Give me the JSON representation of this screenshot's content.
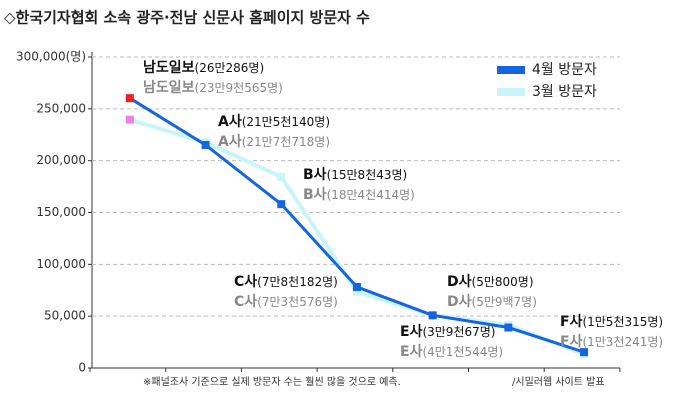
{
  "chart_data": {
    "type": "line",
    "title": "◇한국기자협회 소속 광주·전남 신문사 홈페이지 방문자 수",
    "categories": [
      "남도일보",
      "A사",
      "B사",
      "C사",
      "D사",
      "E사",
      "F사"
    ],
    "series": [
      {
        "name": "4월 방문자",
        "color": "#1565e0",
        "first_marker_color": "#e82020",
        "values": [
          260286,
          215140,
          158043,
          78182,
          50800,
          39067,
          15315
        ],
        "value_labels": [
          "(26만286명)",
          "(21만5천140명)",
          "(15만8천43명)",
          "(7만8천182명)",
          "(5만800명)",
          "(3만9천67명)",
          "(1만5천315명)"
        ]
      },
      {
        "name": "3월 방문자",
        "color": "#c8f5f8",
        "first_marker_color": "#f080e8",
        "values": [
          239565,
          217718,
          184414,
          73576,
          50907,
          41544,
          13241
        ],
        "value_labels": [
          "(23만9천565명)",
          "(21만7천718명)",
          "(18만4천414명)",
          "(7만3천576명)",
          "(5만9백7명)",
          "(4만1천544명)",
          "(1만3천241명)"
        ]
      }
    ],
    "ylim": [
      0,
      300000
    ],
    "yticks": [
      0,
      {
        "value": 50000,
        "label": "50,000"
      },
      {
        "value": 100000,
        "label": "100,000"
      },
      {
        "value": 150000,
        "label": "150,000"
      },
      {
        "value": 200000,
        "label": "200,000"
      },
      {
        "value": 250000,
        "label": "250,000"
      },
      {
        "value": 300000,
        "label": "300,000(명)"
      }
    ],
    "grid": true,
    "legend": "top-right",
    "notes": [
      "※패널조사 기준으로 실제 방문자 수는 훨씬 많을 것으로 예측.",
      "/시밀러웹 사이트 발표"
    ]
  }
}
